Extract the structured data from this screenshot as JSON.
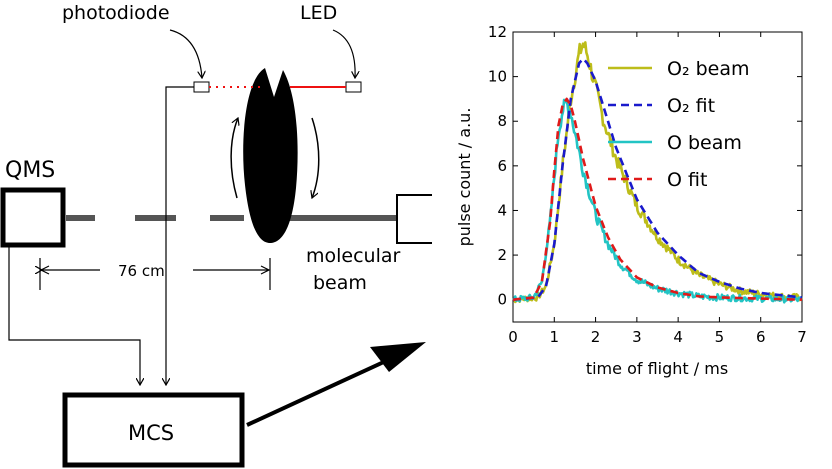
{
  "diagram": {
    "labels": {
      "photodiode": "photodiode",
      "led": "LED",
      "qms": "QMS",
      "distance": "76 cm",
      "molecular": "molecular",
      "beam": "beam",
      "mcs": "MCS"
    },
    "colors": {
      "beam_line": "#555555",
      "led_beam": "#ee1111",
      "outline": "#000000"
    }
  },
  "chart_data": {
    "type": "line",
    "xlabel": "time of flight / ms",
    "ylabel": "pulse count / a.u.",
    "xlim": [
      0,
      7
    ],
    "ylim": [
      -1,
      12
    ],
    "xticks": [
      "0",
      "1",
      "2",
      "3",
      "4",
      "5",
      "6",
      "7"
    ],
    "yticks": [
      "0",
      "2",
      "4",
      "6",
      "8",
      "10",
      "12"
    ],
    "legend_position": "top-right",
    "series": [
      {
        "name": "O₂ beam",
        "style": "solid-noisy",
        "color": "#bdbd1a",
        "x": [
          0,
          0.6,
          0.8,
          1.0,
          1.2,
          1.4,
          1.6,
          1.7,
          1.8,
          2.0,
          2.2,
          2.5,
          3.0,
          3.5,
          4.0,
          4.5,
          5.0,
          5.5,
          6.0,
          6.5,
          7.0
        ],
        "y": [
          0,
          0.1,
          0.6,
          2.5,
          6.0,
          9.0,
          11.0,
          11.5,
          11.0,
          9.5,
          8.0,
          6.3,
          4.2,
          2.8,
          1.8,
          1.1,
          0.7,
          0.4,
          0.25,
          0.15,
          0.1
        ]
      },
      {
        "name": "O₂ fit",
        "style": "dashed",
        "color": "#1a1acc",
        "x": [
          0,
          0.6,
          0.8,
          1.0,
          1.2,
          1.4,
          1.6,
          1.7,
          1.8,
          2.0,
          2.2,
          2.5,
          3.0,
          3.5,
          4.0,
          4.5,
          5.0,
          5.5,
          6.0,
          6.5,
          7.0
        ],
        "y": [
          0,
          0.1,
          0.6,
          2.5,
          6.0,
          9.0,
          10.6,
          10.8,
          10.6,
          9.8,
          8.6,
          6.8,
          4.5,
          3.0,
          2.0,
          1.2,
          0.8,
          0.5,
          0.3,
          0.2,
          0.1
        ]
      },
      {
        "name": "O beam",
        "style": "solid-noisy",
        "color": "#22c4c4",
        "x": [
          0,
          0.5,
          0.7,
          0.9,
          1.0,
          1.1,
          1.2,
          1.3,
          1.4,
          1.5,
          1.7,
          2.0,
          2.3,
          2.6,
          3.0,
          3.5,
          4.0,
          4.5,
          5.0,
          6.0,
          7.0
        ],
        "y": [
          0,
          0.1,
          0.8,
          3.5,
          5.5,
          7.5,
          8.5,
          8.8,
          8.4,
          7.5,
          5.8,
          3.8,
          2.5,
          1.6,
          0.9,
          0.5,
          0.3,
          0.15,
          0.1,
          0.05,
          0.0
        ]
      },
      {
        "name": "O fit",
        "style": "dashed",
        "color": "#e01a1a",
        "x": [
          0,
          0.5,
          0.7,
          0.9,
          1.0,
          1.1,
          1.2,
          1.3,
          1.4,
          1.5,
          1.7,
          2.0,
          2.3,
          2.6,
          3.0,
          3.5,
          4.0,
          4.5,
          5.0,
          6.0,
          7.0
        ],
        "y": [
          0,
          0.1,
          0.8,
          3.5,
          5.8,
          7.8,
          8.7,
          9.0,
          8.7,
          8.0,
          6.3,
          4.2,
          2.8,
          1.8,
          1.0,
          0.55,
          0.3,
          0.15,
          0.1,
          0.05,
          0.0
        ]
      }
    ]
  }
}
